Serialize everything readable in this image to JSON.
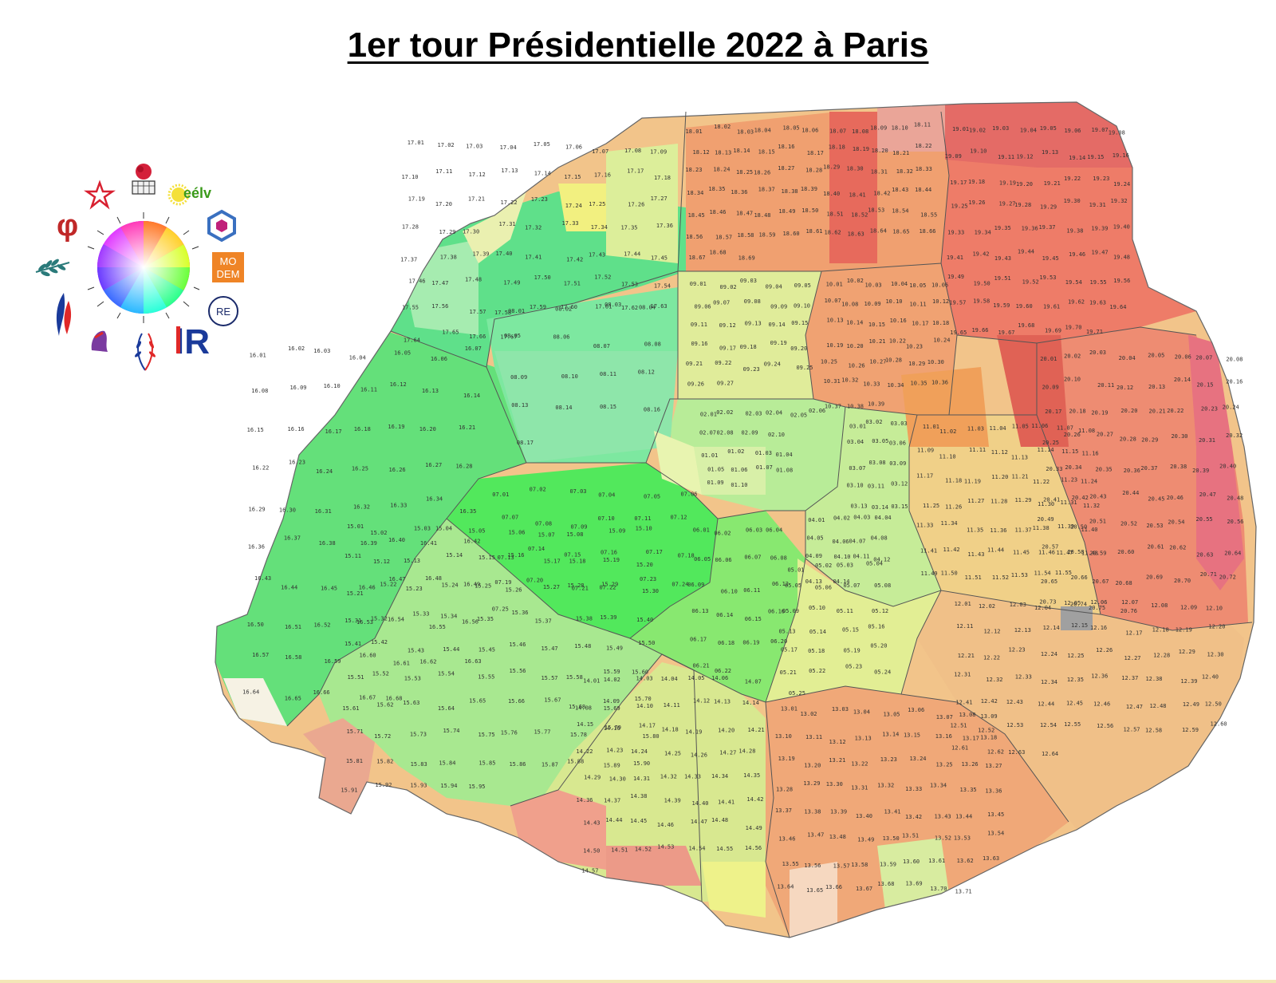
{
  "title": "1er tour Présidentielle 2022 à Paris",
  "legend": {
    "items": [
      {
        "name": "ps-rose-icon",
        "label": ""
      },
      {
        "name": "eelv-icon",
        "label": "eélv"
      },
      {
        "name": "pcf-star-icon",
        "label": ""
      },
      {
        "name": "lfi-phi-icon",
        "label": "φ"
      },
      {
        "name": "hexagon-party-icon",
        "label": ""
      },
      {
        "name": "modem-icon",
        "label_top": "MO",
        "label_bottom": "DEM"
      },
      {
        "name": "olive-branch-icon",
        "label": ""
      },
      {
        "name": "renaissance-icon",
        "label": "RE"
      },
      {
        "name": "rn-flame-icon",
        "label": ""
      },
      {
        "name": "lr-icon",
        "label": "lR"
      },
      {
        "name": "reconquete-icon",
        "label": ""
      },
      {
        "name": "marianne-icon",
        "label": ""
      }
    ]
  },
  "colors": {
    "green_strong": "#4de84d",
    "green_light": "#9be89b",
    "yellow": "#e8f08a",
    "orange": "#f0b070",
    "red": "#e0605a",
    "no_data": "#a0a0a0",
    "border": "#444444"
  },
  "arrondissements": [
    {
      "id": "01",
      "labels": [
        "01.01",
        "01.02",
        "01.03",
        "01.04",
        "01.05",
        "01.06",
        "01.07",
        "01.08",
        "01.09",
        "01.10"
      ]
    },
    {
      "id": "02",
      "labels": [
        "02.01",
        "02.02",
        "02.03",
        "02.04",
        "02.05",
        "02.06",
        "02.07",
        "02.08",
        "02.09",
        "02.10"
      ]
    },
    {
      "id": "03",
      "labels": [
        "03.01",
        "03.02",
        "03.03",
        "03.04",
        "03.05",
        "03.06",
        "03.07",
        "03.08",
        "03.09",
        "03.10",
        "03.11",
        "03.12",
        "03.13",
        "03.14",
        "03.15"
      ]
    },
    {
      "id": "04",
      "labels": [
        "04.01",
        "04.02",
        "04.03",
        "04.04",
        "04.05",
        "04.06",
        "04.07",
        "04.08",
        "04.09",
        "04.10",
        "04.11",
        "04.12",
        "04.13",
        "04.14"
      ]
    },
    {
      "id": "05",
      "labels": [
        "05.01",
        "05.02",
        "05.03",
        "05.04",
        "05.05",
        "05.06",
        "05.07",
        "05.08",
        "05.09",
        "05.10",
        "05.11",
        "05.12",
        "05.13",
        "05.14",
        "05.15",
        "05.16",
        "05.17",
        "05.18",
        "05.19",
        "05.20",
        "05.21",
        "05.22",
        "05.23",
        "05.24",
        "05.25"
      ]
    },
    {
      "id": "06",
      "labels": [
        "06.01",
        "06.02",
        "06.03",
        "06.04",
        "06.05",
        "06.06",
        "06.07",
        "06.08",
        "06.09",
        "06.10",
        "06.11",
        "06.12",
        "06.13",
        "06.14",
        "06.15",
        "06.16",
        "06.17",
        "06.18",
        "06.19",
        "06.20",
        "06.21",
        "06.22"
      ]
    },
    {
      "id": "07",
      "labels": [
        "07.01",
        "07.02",
        "07.03",
        "07.04",
        "07.05",
        "07.06",
        "07.07",
        "07.08",
        "07.09",
        "07.10",
        "07.11",
        "07.12",
        "07.13",
        "07.14",
        "07.15",
        "07.16",
        "07.17",
        "07.18",
        "07.19",
        "07.20",
        "07.21",
        "07.22",
        "07.23",
        "07.24",
        "07.25"
      ]
    },
    {
      "id": "08",
      "labels": [
        "08.01",
        "08.02",
        "08.03",
        "08.04",
        "08.05",
        "08.06",
        "08.07",
        "08.08",
        "08.09",
        "08.10",
        "08.11",
        "08.12",
        "08.13",
        "08.14",
        "08.15",
        "08.16",
        "08.17"
      ]
    },
    {
      "id": "09",
      "labels": [
        "09.01",
        "09.02",
        "09.03",
        "09.04",
        "09.05",
        "09.06",
        "09.07",
        "09.08",
        "09.09",
        "09.10",
        "09.11",
        "09.12",
        "09.13",
        "09.14",
        "09.15",
        "09.16",
        "09.17",
        "09.18",
        "09.19",
        "09.20",
        "09.21",
        "09.22",
        "09.23",
        "09.24",
        "09.25",
        "09.26",
        "09.27"
      ]
    },
    {
      "id": "10",
      "labels": [
        "10.01",
        "10.02",
        "10.03",
        "10.04",
        "10.05",
        "10.06",
        "10.07",
        "10.08",
        "10.09",
        "10.10",
        "10.11",
        "10.12",
        "10.13",
        "10.14",
        "10.15",
        "10.16",
        "10.17",
        "10.18",
        "10.19",
        "10.20",
        "10.21",
        "10.22",
        "10.23",
        "10.24",
        "10.25",
        "10.26",
        "10.27",
        "10.28",
        "10.29",
        "10.30",
        "10.31",
        "10.32",
        "10.33",
        "10.34",
        "10.35",
        "10.36",
        "10.37",
        "10.38",
        "10.39"
      ]
    },
    {
      "id": "11",
      "labels": [
        "11.01",
        "11.02",
        "11.03",
        "11.04",
        "11.05",
        "11.06",
        "11.07",
        "11.08",
        "11.09",
        "11.10",
        "11.11",
        "11.12",
        "11.13",
        "11.14",
        "11.15",
        "11.16",
        "11.17",
        "11.18",
        "11.19",
        "11.20",
        "11.21",
        "11.22",
        "11.23",
        "11.24",
        "11.25",
        "11.26",
        "11.27",
        "11.28",
        "11.29",
        "11.30",
        "11.31",
        "11.32",
        "11.33",
        "11.34",
        "11.35",
        "11.36",
        "11.37",
        "11.38",
        "11.39",
        "11.40",
        "11.41",
        "11.42",
        "11.43",
        "11.44",
        "11.45",
        "11.46",
        "11.47",
        "11.48",
        "11.49",
        "11.50",
        "11.51",
        "11.52",
        "11.53",
        "11.54",
        "11.55"
      ]
    },
    {
      "id": "12",
      "labels": [
        "12.01",
        "12.02",
        "12.03",
        "12.04",
        "12.05",
        "12.06",
        "12.07",
        "12.08",
        "12.09",
        "12.10",
        "12.11",
        "12.12",
        "12.13",
        "12.14",
        "12.15",
        "12.16",
        "12.17",
        "12.18",
        "12.19",
        "12.20",
        "12.21",
        "12.22",
        "12.23",
        "12.24",
        "12.25",
        "12.26",
        "12.27",
        "12.28",
        "12.29",
        "12.30",
        "12.31",
        "12.32",
        "12.33",
        "12.34",
        "12.35",
        "12.36",
        "12.37",
        "12.38",
        "12.39",
        "12.40",
        "12.41",
        "12.42",
        "12.43",
        "12.44",
        "12.45",
        "12.46",
        "12.47",
        "12.48",
        "12.49",
        "12.50",
        "12.51",
        "12.52",
        "12.53",
        "12.54",
        "12.55",
        "12.56",
        "12.57",
        "12.58",
        "12.59",
        "12.60",
        "12.61",
        "12.62",
        "12.63",
        "12.64"
      ]
    },
    {
      "id": "13",
      "labels": [
        "13.01",
        "13.02",
        "13.03",
        "13.04",
        "13.05",
        "13.06",
        "13.07",
        "13.08",
        "13.09",
        "13.10",
        "13.11",
        "13.12",
        "13.13",
        "13.14",
        "13.15",
        "13.16",
        "13.17",
        "13.18",
        "13.19",
        "13.20",
        "13.21",
        "13.22",
        "13.23",
        "13.24",
        "13.25",
        "13.26",
        "13.27",
        "13.28",
        "13.29",
        "13.30",
        "13.31",
        "13.32",
        "13.33",
        "13.34",
        "13.35",
        "13.36",
        "13.37",
        "13.38",
        "13.39",
        "13.40",
        "13.41",
        "13.42",
        "13.43",
        "13.44",
        "13.45",
        "13.46",
        "13.47",
        "13.48",
        "13.49",
        "13.50",
        "13.51",
        "13.52",
        "13.53",
        "13.54",
        "13.55",
        "13.56",
        "13.57",
        "13.58",
        "13.59",
        "13.60",
        "13.61",
        "13.62",
        "13.63",
        "13.64",
        "13.65",
        "13.66",
        "13.67",
        "13.68",
        "13.69",
        "13.70",
        "13.71"
      ]
    },
    {
      "id": "14",
      "labels": [
        "14.01",
        "14.02",
        "14.03",
        "14.04",
        "14.05",
        "14.06",
        "14.07",
        "14.08",
        "14.09",
        "14.10",
        "14.11",
        "14.12",
        "14.13",
        "14.14",
        "14.15",
        "14.16",
        "14.17",
        "14.18",
        "14.19",
        "14.20",
        "14.21",
        "14.22",
        "14.23",
        "14.24",
        "14.25",
        "14.26",
        "14.27",
        "14.28",
        "14.29",
        "14.30",
        "14.31",
        "14.32",
        "14.33",
        "14.34",
        "14.35",
        "14.36",
        "14.37",
        "14.38",
        "14.39",
        "14.40",
        "14.41",
        "14.42",
        "14.43",
        "14.44",
        "14.45",
        "14.46",
        "14.47",
        "14.48",
        "14.49",
        "14.50",
        "14.51",
        "14.52",
        "14.53",
        "14.54",
        "14.55",
        "14.56",
        "14.57"
      ]
    },
    {
      "id": "15",
      "labels": [
        "15.01",
        "15.02",
        "15.03",
        "15.04",
        "15.05",
        "15.06",
        "15.07",
        "15.08",
        "15.09",
        "15.10",
        "15.11",
        "15.12",
        "15.13",
        "15.14",
        "15.15",
        "15.16",
        "15.17",
        "15.18",
        "15.19",
        "15.20",
        "15.21",
        "15.22",
        "15.23",
        "15.24",
        "15.25",
        "15.26",
        "15.27",
        "15.28",
        "15.29",
        "15.30",
        "15.31",
        "15.32",
        "15.33",
        "15.34",
        "15.35",
        "15.36",
        "15.37",
        "15.38",
        "15.39",
        "15.40",
        "15.41",
        "15.42",
        "15.43",
        "15.44",
        "15.45",
        "15.46",
        "15.47",
        "15.48",
        "15.49",
        "15.50",
        "15.51",
        "15.52",
        "15.53",
        "15.54",
        "15.55",
        "15.56",
        "15.57",
        "15.58",
        "15.59",
        "15.60",
        "15.61",
        "15.62",
        "15.63",
        "15.64",
        "15.65",
        "15.66",
        "15.67",
        "15.68",
        "15.69",
        "15.70",
        "15.71",
        "15.72",
        "15.73",
        "15.74",
        "15.75",
        "15.76",
        "15.77",
        "15.78",
        "15.79",
        "15.80",
        "15.81",
        "15.82",
        "15.83",
        "15.84",
        "15.85",
        "15.86",
        "15.87",
        "15.88",
        "15.89",
        "15.90",
        "15.91",
        "15.92",
        "15.93",
        "15.94",
        "15.95"
      ]
    },
    {
      "id": "16",
      "labels": [
        "16.01",
        "16.02",
        "16.03",
        "16.04",
        "16.05",
        "16.06",
        "16.07",
        "16.08",
        "16.09",
        "16.10",
        "16.11",
        "16.12",
        "16.13",
        "16.14",
        "16.15",
        "16.16",
        "16.17",
        "16.18",
        "16.19",
        "16.20",
        "16.21",
        "16.22",
        "16.23",
        "16.24",
        "16.25",
        "16.26",
        "16.27",
        "16.28",
        "16.29",
        "16.30",
        "16.31",
        "16.32",
        "16.33",
        "16.34",
        "16.35",
        "16.36",
        "16.37",
        "16.38",
        "16.39",
        "16.40",
        "16.41",
        "16.42",
        "16.43",
        "16.44",
        "16.45",
        "16.46",
        "16.47",
        "16.48",
        "16.49",
        "16.50",
        "16.51",
        "16.52",
        "16.53",
        "16.54",
        "16.55",
        "16.56",
        "16.57",
        "16.58",
        "16.59",
        "16.60",
        "16.61",
        "16.62",
        "16.63",
        "16.64",
        "16.65",
        "16.66",
        "16.67",
        "16.68"
      ]
    },
    {
      "id": "17",
      "labels": [
        "17.01",
        "17.02",
        "17.03",
        "17.04",
        "17.05",
        "17.06",
        "17.07",
        "17.08",
        "17.09",
        "17.10",
        "17.11",
        "17.12",
        "17.13",
        "17.14",
        "17.15",
        "17.16",
        "17.17",
        "17.18",
        "17.19",
        "17.20",
        "17.21",
        "17.22",
        "17.23",
        "17.24",
        "17.25",
        "17.26",
        "17.27",
        "17.28",
        "17.29",
        "17.30",
        "17.31",
        "17.32",
        "17.33",
        "17.34",
        "17.35",
        "17.36",
        "17.37",
        "17.38",
        "17.39",
        "17.40",
        "17.41",
        "17.42",
        "17.43",
        "17.44",
        "17.45",
        "17.46",
        "17.47",
        "17.48",
        "17.49",
        "17.50",
        "17.51",
        "17.52",
        "17.53",
        "17.54",
        "17.55",
        "17.56",
        "17.57",
        "17.58",
        "17.59",
        "17.60",
        "17.61",
        "17.62",
        "17.63",
        "17.64",
        "17.65",
        "17.66",
        "17.67"
      ]
    },
    {
      "id": "18",
      "labels": [
        "18.01",
        "18.02",
        "18.03",
        "18.04",
        "18.05",
        "18.06",
        "18.07",
        "18.08",
        "18.09",
        "18.10",
        "18.11",
        "18.12",
        "18.13",
        "18.14",
        "18.15",
        "18.16",
        "18.17",
        "18.18",
        "18.19",
        "18.20",
        "18.21",
        "18.22",
        "18.23",
        "18.24",
        "18.25",
        "18.26",
        "18.27",
        "18.28",
        "18.29",
        "18.30",
        "18.31",
        "18.32",
        "18.33",
        "18.34",
        "18.35",
        "18.36",
        "18.37",
        "18.38",
        "18.39",
        "18.40",
        "18.41",
        "18.42",
        "18.43",
        "18.44",
        "18.45",
        "18.46",
        "18.47",
        "18.48",
        "18.49",
        "18.50",
        "18.51",
        "18.52",
        "18.53",
        "18.54",
        "18.55",
        "18.56",
        "18.57",
        "18.58",
        "18.59",
        "18.60",
        "18.61",
        "18.62",
        "18.63",
        "18.64",
        "18.65",
        "18.66",
        "18.67",
        "18.68",
        "18.69"
      ]
    },
    {
      "id": "19",
      "labels": [
        "19.01",
        "19.02",
        "19.03",
        "19.04",
        "19.05",
        "19.06",
        "19.07",
        "19.08",
        "19.09",
        "19.10",
        "19.11",
        "19.12",
        "19.13",
        "19.14",
        "19.15",
        "19.16",
        "19.17",
        "19.18",
        "19.19",
        "19.20",
        "19.21",
        "19.22",
        "19.23",
        "19.24",
        "19.25",
        "19.26",
        "19.27",
        "19.28",
        "19.29",
        "19.30",
        "19.31",
        "19.32",
        "19.33",
        "19.34",
        "19.35",
        "19.36",
        "19.37",
        "19.38",
        "19.39",
        "19.40",
        "19.41",
        "19.42",
        "19.43",
        "19.44",
        "19.45",
        "19.46",
        "19.47",
        "19.48",
        "19.49",
        "19.50",
        "19.51",
        "19.52",
        "19.53",
        "19.54",
        "19.55",
        "19.56",
        "19.57",
        "19.58",
        "19.59",
        "19.60",
        "19.61",
        "19.62",
        "19.63",
        "19.64",
        "19.65",
        "19.66",
        "19.67",
        "19.68",
        "19.69",
        "19.70",
        "19.71"
      ]
    },
    {
      "id": "20",
      "labels": [
        "20.01",
        "20.02",
        "20.03",
        "20.04",
        "20.05",
        "20.06",
        "20.07",
        "20.08",
        "20.09",
        "20.10",
        "20.11",
        "20.12",
        "20.13",
        "20.14",
        "20.15",
        "20.16",
        "20.17",
        "20.18",
        "20.19",
        "20.20",
        "20.21",
        "20.22",
        "20.23",
        "20.24",
        "20.25",
        "20.26",
        "20.27",
        "20.28",
        "20.29",
        "20.30",
        "20.31",
        "20.32",
        "20.33",
        "20.34",
        "20.35",
        "20.36",
        "20.37",
        "20.38",
        "20.39",
        "20.40",
        "20.41",
        "20.42",
        "20.43",
        "20.44",
        "20.45",
        "20.46",
        "20.47",
        "20.48",
        "20.49",
        "20.50",
        "20.51",
        "20.52",
        "20.53",
        "20.54",
        "20.55",
        "20.56",
        "20.57",
        "20.58",
        "20.59",
        "20.60",
        "20.61",
        "20.62",
        "20.63",
        "20.64",
        "20.65",
        "20.66",
        "20.67",
        "20.68",
        "20.69",
        "20.70",
        "20.71",
        "20.72",
        "20.73",
        "20.74",
        "20.75",
        "20.76"
      ]
    }
  ],
  "no_data_label": "12.15"
}
